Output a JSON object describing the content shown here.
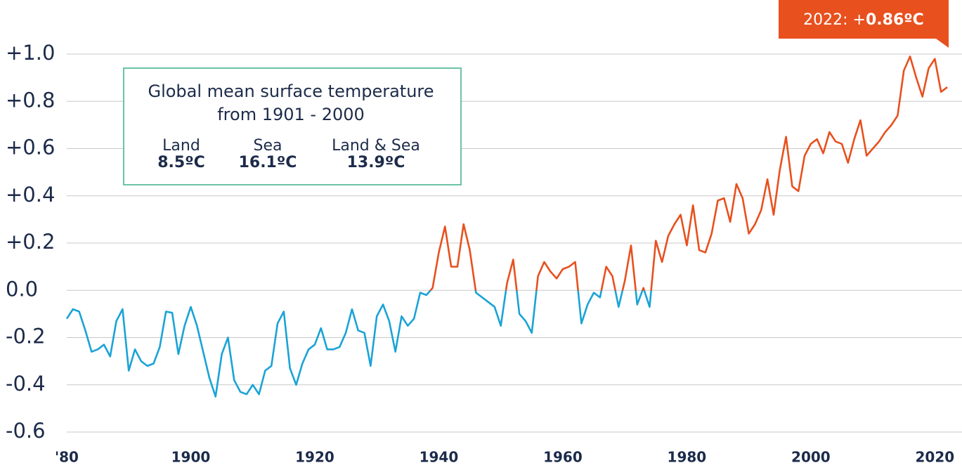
{
  "chart_data": {
    "type": "line",
    "x": [
      1880,
      1881,
      1882,
      1883,
      1884,
      1885,
      1886,
      1887,
      1888,
      1889,
      1890,
      1891,
      1892,
      1893,
      1894,
      1895,
      1896,
      1897,
      1898,
      1899,
      1900,
      1901,
      1902,
      1903,
      1904,
      1905,
      1906,
      1907,
      1908,
      1909,
      1910,
      1911,
      1912,
      1913,
      1914,
      1915,
      1916,
      1917,
      1918,
      1919,
      1920,
      1921,
      1922,
      1923,
      1924,
      1925,
      1926,
      1927,
      1928,
      1929,
      1930,
      1931,
      1932,
      1933,
      1934,
      1935,
      1936,
      1937,
      1938,
      1939,
      1940,
      1941,
      1942,
      1943,
      1944,
      1945,
      1946,
      1947,
      1948,
      1949,
      1950,
      1951,
      1952,
      1953,
      1954,
      1955,
      1956,
      1957,
      1958,
      1959,
      1960,
      1961,
      1962,
      1963,
      1964,
      1965,
      1966,
      1967,
      1968,
      1969,
      1970,
      1971,
      1972,
      1973,
      1974,
      1975,
      1976,
      1977,
      1978,
      1979,
      1980,
      1981,
      1982,
      1983,
      1984,
      1985,
      1986,
      1987,
      1988,
      1989,
      1990,
      1991,
      1992,
      1993,
      1994,
      1995,
      1996,
      1997,
      1998,
      1999,
      2000,
      2001,
      2002,
      2003,
      2004,
      2005,
      2006,
      2007,
      2008,
      2009,
      2010,
      2011,
      2012,
      2013,
      2014,
      2015,
      2016,
      2017,
      2018,
      2019,
      2020,
      2021,
      2022
    ],
    "values": [
      -0.12,
      -0.08,
      -0.09,
      -0.17,
      -0.26,
      -0.25,
      -0.23,
      -0.28,
      -0.13,
      -0.08,
      -0.34,
      -0.25,
      -0.3,
      -0.32,
      -0.31,
      -0.24,
      -0.09,
      -0.095,
      -0.27,
      -0.15,
      -0.07,
      -0.15,
      -0.26,
      -0.37,
      -0.45,
      -0.27,
      -0.2,
      -0.38,
      -0.43,
      -0.44,
      -0.4,
      -0.44,
      -0.34,
      -0.32,
      -0.14,
      -0.09,
      -0.33,
      -0.4,
      -0.31,
      -0.25,
      -0.23,
      -0.16,
      -0.25,
      -0.25,
      -0.24,
      -0.18,
      -0.08,
      -0.17,
      -0.18,
      -0.32,
      -0.11,
      -0.06,
      -0.13,
      -0.26,
      -0.11,
      -0.15,
      -0.12,
      -0.01,
      -0.02,
      0.01,
      0.16,
      0.27,
      0.1,
      0.1,
      0.28,
      0.17,
      -0.01,
      -0.03,
      -0.05,
      -0.07,
      -0.15,
      0.03,
      0.13,
      -0.1,
      -0.13,
      -0.18,
      0.06,
      0.12,
      0.08,
      0.05,
      0.09,
      0.1,
      0.12,
      -0.14,
      -0.06,
      -0.01,
      -0.03,
      0.1,
      0.06,
      -0.07,
      0.04,
      0.19,
      -0.06,
      0.01,
      -0.07,
      0.21,
      0.12,
      0.23,
      0.28,
      0.32,
      0.19,
      0.36,
      0.17,
      0.16,
      0.24,
      0.38,
      0.39,
      0.29,
      0.45,
      0.39,
      0.24,
      0.28,
      0.34,
      0.47,
      0.32,
      0.51,
      0.65,
      0.44,
      0.42,
      0.57,
      0.62,
      0.64,
      0.58,
      0.67,
      0.63,
      0.62,
      0.54,
      0.64,
      0.72,
      0.57,
      0.6,
      0.63,
      0.67,
      0.7,
      0.74,
      0.93,
      0.99,
      0.9,
      0.82,
      0.94,
      0.98,
      0.84,
      0.86
    ],
    "color_below": "#1aa3d6",
    "color_above": "#e8501e",
    "xlim": [
      1880,
      2022
    ],
    "xticks": [
      {
        "value": 1880,
        "label": "'80"
      },
      1900,
      1920,
      1940,
      1960,
      1980,
      2000,
      2020
    ],
    "ylim": [
      -0.6,
      1.0
    ],
    "yticks": [
      {
        "value": 1.0,
        "label": "+1.0"
      },
      {
        "value": 0.8,
        "label": "+0.8"
      },
      {
        "value": 0.6,
        "label": "+0.6"
      },
      {
        "value": 0.4,
        "label": "+0.4"
      },
      {
        "value": 0.2,
        "label": "+0.2"
      },
      {
        "value": 0,
        "label": "0.0"
      },
      -0.2,
      -0.4,
      -0.6
    ],
    "grid": true,
    "annotation": {
      "label": "2022: +",
      "value": "0.86ºC"
    },
    "info_box": {
      "title": [
        "Global mean surface temperature",
        "from 1901 - 2000"
      ],
      "items": [
        {
          "label": "Land",
          "value": "8.5ºC"
        },
        {
          "label": "Sea",
          "value": "16.1ºC"
        },
        {
          "label": "Land & Sea",
          "value": "13.9ºC"
        }
      ]
    }
  }
}
